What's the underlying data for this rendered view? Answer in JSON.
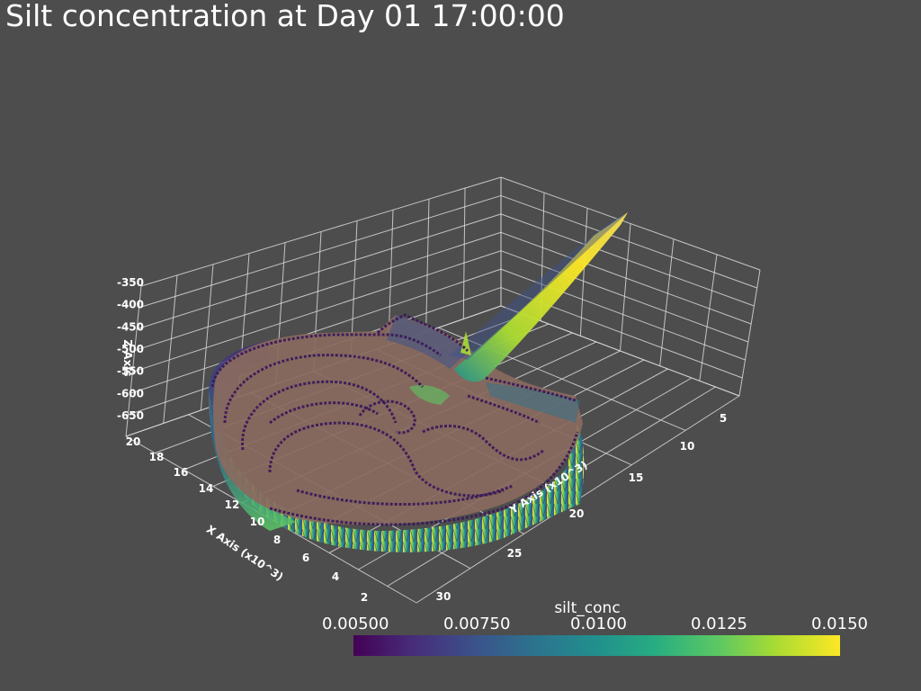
{
  "title": "Silt concentration at Day 01 17:00:00",
  "chart_data": {
    "type": "surface3d",
    "title": "Silt concentration at Day 01 17:00:00",
    "scalar": "silt_conc",
    "x_axis": {
      "label": "X Axis (x10^3)",
      "ticks": [
        "2",
        "4",
        "6",
        "8",
        "10",
        "12",
        "14",
        "16",
        "18",
        "20"
      ]
    },
    "y_axis": {
      "label": "Y Axis (x10^3)",
      "ticks": [
        "5",
        "10",
        "15",
        "20",
        "25",
        "30"
      ]
    },
    "z_axis": {
      "label": "Z Axis",
      "ticks": [
        "-650",
        "-600",
        "-550",
        "-500",
        "-450",
        "-400",
        "-350"
      ]
    },
    "colorbar": {
      "title": "silt_conc",
      "range": [
        0.005,
        0.015
      ],
      "ticks": [
        "0.00500",
        "0.00750",
        "0.0100",
        "0.0125",
        "0.0150"
      ],
      "colormap": "viridis",
      "colors": [
        "#440154",
        "#3b528b",
        "#21908d",
        "#5cc863",
        "#fde725"
      ]
    },
    "grid": true,
    "background": "#4d4d4d",
    "surface_color": "#8a6a5e",
    "contour_color": "#3a1a5a"
  }
}
